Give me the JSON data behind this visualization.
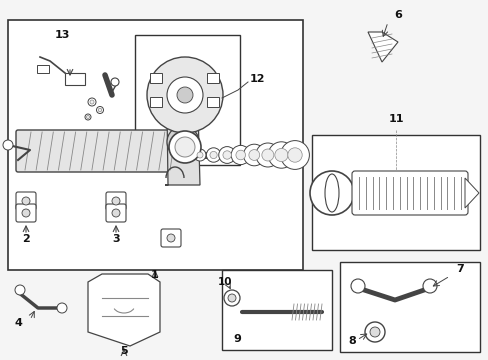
{
  "bg_color": "#f5f5f5",
  "border_color": "#333333",
  "title": "",
  "fig_width": 4.89,
  "fig_height": 3.6,
  "dpi": 100
}
